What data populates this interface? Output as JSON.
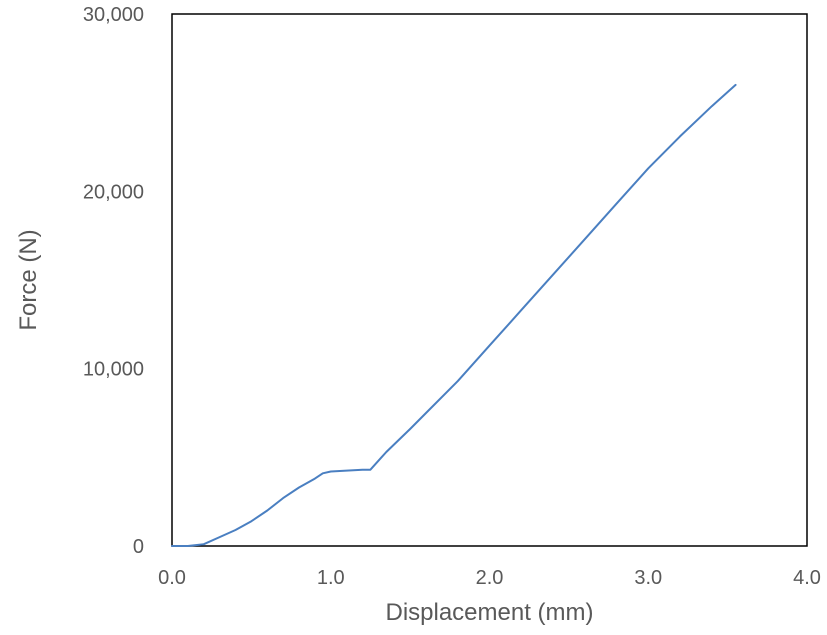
{
  "chart_data": {
    "type": "line",
    "xlabel": "Displacement (mm)",
    "ylabel": "Force (N)",
    "xlim": [
      0,
      4
    ],
    "ylim": [
      0,
      30000
    ],
    "x_ticks": [
      0,
      1,
      2,
      3,
      4
    ],
    "x_tick_labels": [
      "0.0",
      "1.0",
      "2.0",
      "3.0",
      "4.0"
    ],
    "y_ticks": [
      0,
      10000,
      20000,
      30000
    ],
    "y_tick_labels": [
      "0",
      "10,000",
      "20,000",
      "30,000"
    ],
    "grid": false,
    "series": [
      {
        "color": "#4a7fc1",
        "x": [
          0.0,
          0.1,
          0.2,
          0.3,
          0.4,
          0.5,
          0.6,
          0.7,
          0.8,
          0.9,
          0.95,
          1.0,
          1.1,
          1.2,
          1.25,
          1.35,
          1.5,
          1.6,
          1.8,
          2.0,
          2.2,
          2.4,
          2.6,
          2.8,
          3.0,
          3.2,
          3.4,
          3.55
        ],
        "y": [
          0,
          0,
          100,
          500,
          900,
          1400,
          2000,
          2700,
          3300,
          3800,
          4100,
          4200,
          4250,
          4300,
          4300,
          5300,
          6600,
          7500,
          9300,
          11300,
          13300,
          15300,
          17300,
          19300,
          21300,
          23100,
          24800,
          26000
        ]
      }
    ]
  }
}
